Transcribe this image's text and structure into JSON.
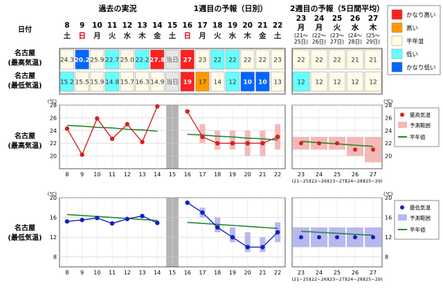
{
  "header": {
    "past_title": "過去の実況",
    "week1_title": "1週目の予報（日別）",
    "week2_title": "2週目の予報（5日間平均）",
    "date_label": "日付"
  },
  "row_labels": {
    "max_line1": "名古屋",
    "max_line2": "(最高気温)",
    "min_line1": "名古屋",
    "min_line2": "(最低気温)"
  },
  "days": [
    {
      "d": "8",
      "w": "土",
      "wc": "#222"
    },
    {
      "d": "9",
      "w": "日",
      "wc": "#e00000"
    },
    {
      "d": "10",
      "w": "月",
      "wc": "#222"
    },
    {
      "d": "11",
      "w": "火",
      "wc": "#222"
    },
    {
      "d": "12",
      "w": "水",
      "wc": "#222"
    },
    {
      "d": "13",
      "w": "木",
      "wc": "#222"
    },
    {
      "d": "14",
      "w": "金",
      "wc": "#222"
    },
    {
      "d": "15",
      "w": "土",
      "wc": "#222"
    },
    {
      "d": "16",
      "w": "日",
      "wc": "#e00000"
    },
    {
      "d": "17",
      "w": "月",
      "wc": "#222"
    },
    {
      "d": "18",
      "w": "火",
      "wc": "#222"
    },
    {
      "d": "19",
      "w": "水",
      "wc": "#222"
    },
    {
      "d": "20",
      "w": "木",
      "wc": "#222"
    },
    {
      "d": "21",
      "w": "金",
      "wc": "#222"
    },
    {
      "d": "22",
      "w": "土",
      "wc": "#222"
    }
  ],
  "week2_days": [
    {
      "d": "23",
      "w": "月",
      "r1": "(21〜",
      "r2": "25日)"
    },
    {
      "d": "24",
      "w": "月",
      "r1": "(22〜",
      "r2": "26日)"
    },
    {
      "d": "25",
      "w": "火",
      "r1": "(23〜",
      "r2": "27日)"
    },
    {
      "d": "26",
      "w": "水",
      "r1": "(24〜",
      "r2": "28日)"
    },
    {
      "d": "27",
      "w": "木",
      "r1": "(25〜",
      "r2": "29日)"
    }
  ],
  "max_row": [
    {
      "v": "24.3",
      "c": "n"
    },
    {
      "v": "20.2",
      "c": "vlow"
    },
    {
      "v": "25.9",
      "c": "n"
    },
    {
      "v": "22.7",
      "c": "low"
    },
    {
      "v": "25.0",
      "c": "n"
    },
    {
      "v": "22.2",
      "c": "low"
    },
    {
      "v": "27.8",
      "c": "vhigh"
    },
    {
      "v": "当日",
      "c": "today"
    },
    {
      "v": "27",
      "c": "vhigh"
    },
    {
      "v": "23",
      "c": "n"
    },
    {
      "v": "22",
      "c": "low"
    },
    {
      "v": "22",
      "c": "low"
    },
    {
      "v": "22",
      "c": "n"
    },
    {
      "v": "22",
      "c": "n"
    },
    {
      "v": "23",
      "c": "n"
    }
  ],
  "min_row": [
    {
      "v": "15.2",
      "c": "low"
    },
    {
      "v": "15.5",
      "c": "n"
    },
    {
      "v": "15.9",
      "c": "n"
    },
    {
      "v": "14.8",
      "c": "low"
    },
    {
      "v": "15.7",
      "c": "n"
    },
    {
      "v": "16.3",
      "c": "n"
    },
    {
      "v": "14.9",
      "c": "n"
    },
    {
      "v": "当日",
      "c": "today"
    },
    {
      "v": "19",
      "c": "vhigh"
    },
    {
      "v": "17",
      "c": "high"
    },
    {
      "v": "14",
      "c": "n"
    },
    {
      "v": "12",
      "c": "low"
    },
    {
      "v": "10",
      "c": "vlow"
    },
    {
      "v": "10",
      "c": "vlow"
    },
    {
      "v": "13",
      "c": "n"
    }
  ],
  "week2_max_row": [
    {
      "v": "22",
      "c": "n"
    },
    {
      "v": "22",
      "c": "n"
    },
    {
      "v": "22",
      "c": "n"
    },
    {
      "v": "21",
      "c": "n"
    },
    {
      "v": "21",
      "c": "n"
    }
  ],
  "week2_min_row": [
    {
      "v": "12",
      "c": "low"
    },
    {
      "v": "12",
      "c": "n"
    },
    {
      "v": "12",
      "c": "n"
    },
    {
      "v": "12",
      "c": "n"
    },
    {
      "v": "12",
      "c": "n"
    }
  ],
  "category_legend": [
    {
      "label": "かなり高い",
      "color": "#ff2020"
    },
    {
      "label": "高い",
      "color": "#ff9900"
    },
    {
      "label": "平年並",
      "color": "#ffffe0"
    },
    {
      "label": "低い",
      "color": "#66ffff"
    },
    {
      "label": "かなり低い",
      "color": "#0066ff"
    }
  ],
  "colors": {
    "vhigh": "#ff2020",
    "high": "#ff9900",
    "n": "#fffbe8",
    "low": "#66ffff",
    "vlow": "#0066ff",
    "today": "#e6e6e6",
    "max_line": "#d42020",
    "min_line": "#1020c0",
    "normal_line": "#1a8a2a",
    "max_band": "#f5b8b8",
    "min_band": "#b8b8f0",
    "gray_col": "#b4b4b4"
  },
  "chart_data": [
    {
      "type": "line",
      "title": "名古屋(最高気温)",
      "y_unit": "(℃)",
      "ylim": [
        18,
        28
      ],
      "yticks": [
        20,
        22,
        24,
        26,
        28
      ],
      "x_daily": [
        "8",
        "9",
        "10",
        "11",
        "12",
        "13",
        "14",
        "15",
        "16",
        "17",
        "18",
        "19",
        "20",
        "21",
        "22"
      ],
      "x_week2": [
        "23",
        "24",
        "25",
        "26",
        "27"
      ],
      "x_week2_ranges": [
        "(21~25)",
        "(22~26)",
        "(23~27)",
        "(24~28)",
        "(25~29)"
      ],
      "observed": [
        24.3,
        20.2,
        25.9,
        22.7,
        25.0,
        22.2,
        27.8
      ],
      "forecast": [
        27,
        23,
        22,
        22,
        22,
        22,
        23
      ],
      "forecast_range": [
        null,
        [
          22,
          25
        ],
        [
          21,
          24
        ],
        [
          21,
          24
        ],
        [
          20,
          24
        ],
        [
          20,
          24
        ],
        [
          21,
          25
        ]
      ],
      "normal_past": [
        24.8,
        24.7,
        24.5,
        24.4,
        24.2,
        24.1,
        23.9
      ],
      "normal_fc": [
        23.4,
        23.3,
        23.1,
        23.0,
        22.8,
        22.7,
        22.5
      ],
      "week2": [
        22,
        22,
        22,
        21,
        21
      ],
      "week2_range": [
        [
          21,
          23
        ],
        [
          21,
          23
        ],
        [
          21,
          23
        ],
        [
          20,
          23
        ],
        [
          19,
          23
        ]
      ],
      "week2_normal": [
        22.3,
        22.1,
        21.9,
        21.7,
        21.5
      ],
      "legend": [
        "最高気温",
        "予測範囲",
        "平年値"
      ]
    },
    {
      "type": "line",
      "title": "名古屋(最低気温)",
      "y_unit": "(℃)",
      "ylim": [
        6,
        20
      ],
      "yticks": [
        8,
        12,
        16,
        20
      ],
      "x_daily": [
        "8",
        "9",
        "10",
        "11",
        "12",
        "13",
        "14",
        "15",
        "16",
        "17",
        "18",
        "19",
        "20",
        "21",
        "22"
      ],
      "x_week2": [
        "23",
        "24",
        "25",
        "26",
        "27"
      ],
      "x_week2_ranges": [
        "(21~25)",
        "(22~26)",
        "(23~27)",
        "(24~28)",
        "(25~29)"
      ],
      "observed": [
        15.2,
        15.5,
        15.9,
        14.8,
        15.7,
        16.3,
        14.9
      ],
      "forecast": [
        19,
        17,
        14,
        12,
        10,
        10,
        13
      ],
      "forecast_range": [
        null,
        [
          16,
          18
        ],
        [
          13,
          16
        ],
        [
          11,
          14
        ],
        [
          9,
          13
        ],
        [
          9,
          12
        ],
        [
          11,
          15
        ]
      ],
      "normal_past": [
        16.6,
        16.4,
        16.2,
        16.0,
        15.8,
        15.6,
        15.4
      ],
      "normal_fc": [
        15.0,
        14.8,
        14.6,
        14.4,
        14.2,
        14.0,
        13.8
      ],
      "week2": [
        12,
        12,
        12,
        12,
        12
      ],
      "week2_range": [
        [
          10,
          14
        ],
        [
          10,
          14
        ],
        [
          10,
          14
        ],
        [
          10,
          14
        ],
        [
          10,
          14
        ]
      ],
      "week2_normal": [
        13.2,
        13.0,
        12.8,
        12.6,
        12.4
      ],
      "legend": [
        "最低気温",
        "予測範囲",
        "平年値"
      ]
    }
  ]
}
